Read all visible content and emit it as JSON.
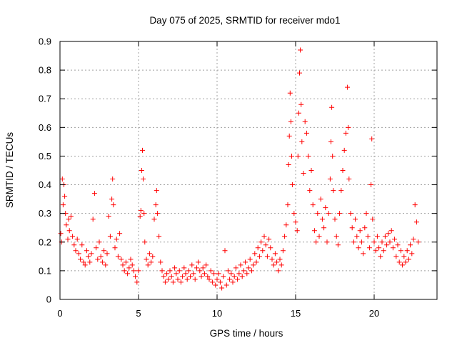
{
  "chart_data": {
    "type": "scatter",
    "title": "Day 075 of 2025, SRMTID for receiver mdo1",
    "xlabel": "GPS time / hours",
    "ylabel": "SRMTID / TECUs",
    "xlim": [
      0,
      24
    ],
    "ylim": [
      0,
      0.9
    ],
    "xticks": [
      0,
      5,
      10,
      15,
      20
    ],
    "xtick_labels": [
      "0",
      "5",
      "10",
      "15",
      "20"
    ],
    "yticks": [
      0,
      0.1,
      0.2,
      0.3,
      0.4,
      0.5,
      0.6,
      0.7,
      0.8,
      0.9
    ],
    "ytick_labels": [
      "0",
      "0.1",
      "0.2",
      "0.3",
      "0.4",
      "0.5",
      "0.6",
      "0.7",
      "0.8",
      "0.9"
    ],
    "grid": true,
    "marker": "+",
    "marker_color": "#ff0000",
    "series": [
      {
        "name": "SRMTID",
        "points": [
          [
            0.05,
            0.23
          ],
          [
            0.1,
            0.2
          ],
          [
            0.15,
            0.42
          ],
          [
            0.2,
            0.33
          ],
          [
            0.25,
            0.4
          ],
          [
            0.3,
            0.36
          ],
          [
            0.35,
            0.3
          ],
          [
            0.4,
            0.26
          ],
          [
            0.5,
            0.21
          ],
          [
            0.55,
            0.28
          ],
          [
            0.6,
            0.24
          ],
          [
            0.7,
            0.29
          ],
          [
            0.8,
            0.22
          ],
          [
            0.9,
            0.19
          ],
          [
            1.0,
            0.17
          ],
          [
            1.1,
            0.21
          ],
          [
            1.2,
            0.16
          ],
          [
            1.3,
            0.14
          ],
          [
            1.4,
            0.19
          ],
          [
            1.5,
            0.13
          ],
          [
            1.6,
            0.12
          ],
          [
            1.7,
            0.17
          ],
          [
            1.8,
            0.15
          ],
          [
            1.9,
            0.13
          ],
          [
            2.0,
            0.16
          ],
          [
            2.1,
            0.28
          ],
          [
            2.2,
            0.37
          ],
          [
            2.3,
            0.18
          ],
          [
            2.4,
            0.14
          ],
          [
            2.5,
            0.2
          ],
          [
            2.6,
            0.15
          ],
          [
            2.7,
            0.13
          ],
          [
            2.8,
            0.17
          ],
          [
            2.9,
            0.12
          ],
          [
            3.0,
            0.16
          ],
          [
            3.1,
            0.29
          ],
          [
            3.2,
            0.22
          ],
          [
            3.3,
            0.35
          ],
          [
            3.35,
            0.42
          ],
          [
            3.4,
            0.33
          ],
          [
            3.5,
            0.18
          ],
          [
            3.6,
            0.21
          ],
          [
            3.7,
            0.15
          ],
          [
            3.8,
            0.23
          ],
          [
            3.9,
            0.14
          ],
          [
            4.0,
            0.12
          ],
          [
            4.1,
            0.1
          ],
          [
            4.2,
            0.13
          ],
          [
            4.3,
            0.09
          ],
          [
            4.4,
            0.11
          ],
          [
            4.5,
            0.14
          ],
          [
            4.6,
            0.12
          ],
          [
            4.7,
            0.1
          ],
          [
            4.8,
            0.08
          ],
          [
            4.9,
            0.06
          ],
          [
            5.0,
            0.1
          ],
          [
            5.1,
            0.29
          ],
          [
            5.15,
            0.31
          ],
          [
            5.2,
            0.45
          ],
          [
            5.25,
            0.52
          ],
          [
            5.3,
            0.42
          ],
          [
            5.35,
            0.3
          ],
          [
            5.4,
            0.2
          ],
          [
            5.5,
            0.14
          ],
          [
            5.6,
            0.12
          ],
          [
            5.7,
            0.16
          ],
          [
            5.8,
            0.13
          ],
          [
            5.9,
            0.15
          ],
          [
            6.0,
            0.28
          ],
          [
            6.1,
            0.33
          ],
          [
            6.15,
            0.38
          ],
          [
            6.2,
            0.3
          ],
          [
            6.3,
            0.22
          ],
          [
            6.4,
            0.13
          ],
          [
            6.5,
            0.1
          ],
          [
            6.6,
            0.08
          ],
          [
            6.7,
            0.06
          ],
          [
            6.8,
            0.09
          ],
          [
            6.9,
            0.07
          ],
          [
            7.0,
            0.1
          ],
          [
            7.1,
            0.08
          ],
          [
            7.2,
            0.06
          ],
          [
            7.3,
            0.11
          ],
          [
            7.4,
            0.09
          ],
          [
            7.5,
            0.07
          ],
          [
            7.6,
            0.1
          ],
          [
            7.7,
            0.06
          ],
          [
            7.8,
            0.08
          ],
          [
            7.9,
            0.11
          ],
          [
            8.0,
            0.09
          ],
          [
            8.1,
            0.07
          ],
          [
            8.2,
            0.1
          ],
          [
            8.3,
            0.08
          ],
          [
            8.4,
            0.12
          ],
          [
            8.5,
            0.09
          ],
          [
            8.6,
            0.07
          ],
          [
            8.7,
            0.11
          ],
          [
            8.8,
            0.13
          ],
          [
            8.9,
            0.1
          ],
          [
            9.0,
            0.08
          ],
          [
            9.1,
            0.11
          ],
          [
            9.2,
            0.09
          ],
          [
            9.3,
            0.12
          ],
          [
            9.4,
            0.08
          ],
          [
            9.5,
            0.07
          ],
          [
            9.6,
            0.1
          ],
          [
            9.7,
            0.06
          ],
          [
            9.8,
            0.09
          ],
          [
            9.9,
            0.05
          ],
          [
            10.0,
            0.07
          ],
          [
            10.1,
            0.09
          ],
          [
            10.2,
            0.06
          ],
          [
            10.3,
            0.04
          ],
          [
            10.4,
            0.08
          ],
          [
            10.5,
            0.17
          ],
          [
            10.6,
            0.05
          ],
          [
            10.7,
            0.1
          ],
          [
            10.8,
            0.07
          ],
          [
            10.9,
            0.09
          ],
          [
            11.0,
            0.06
          ],
          [
            11.1,
            0.08
          ],
          [
            11.2,
            0.11
          ],
          [
            11.3,
            0.07
          ],
          [
            11.4,
            0.09
          ],
          [
            11.5,
            0.12
          ],
          [
            11.6,
            0.08
          ],
          [
            11.7,
            0.1
          ],
          [
            11.8,
            0.13
          ],
          [
            11.9,
            0.09
          ],
          [
            12.0,
            0.11
          ],
          [
            12.1,
            0.14
          ],
          [
            12.2,
            0.1
          ],
          [
            12.3,
            0.12
          ],
          [
            12.4,
            0.16
          ],
          [
            12.5,
            0.13
          ],
          [
            12.6,
            0.18
          ],
          [
            12.7,
            0.15
          ],
          [
            12.8,
            0.2
          ],
          [
            12.9,
            0.17
          ],
          [
            13.0,
            0.22
          ],
          [
            13.1,
            0.19
          ],
          [
            13.2,
            0.15
          ],
          [
            13.3,
            0.21
          ],
          [
            13.4,
            0.18
          ],
          [
            13.5,
            0.14
          ],
          [
            13.6,
            0.12
          ],
          [
            13.7,
            0.16
          ],
          [
            13.8,
            0.13
          ],
          [
            13.9,
            0.1
          ],
          [
            14.0,
            0.14
          ],
          [
            14.1,
            0.12
          ],
          [
            14.2,
            0.17
          ],
          [
            14.3,
            0.22
          ],
          [
            14.4,
            0.26
          ],
          [
            14.5,
            0.33
          ],
          [
            14.55,
            0.47
          ],
          [
            14.6,
            0.57
          ],
          [
            14.65,
            0.72
          ],
          [
            14.7,
            0.62
          ],
          [
            14.75,
            0.5
          ],
          [
            14.8,
            0.4
          ],
          [
            14.9,
            0.3
          ],
          [
            15.0,
            0.27
          ],
          [
            15.1,
            0.24
          ],
          [
            15.15,
            0.5
          ],
          [
            15.2,
            0.65
          ],
          [
            15.25,
            0.79
          ],
          [
            15.3,
            0.87
          ],
          [
            15.35,
            0.68
          ],
          [
            15.4,
            0.55
          ],
          [
            15.5,
            0.44
          ],
          [
            15.6,
            0.62
          ],
          [
            15.7,
            0.58
          ],
          [
            15.8,
            0.5
          ],
          [
            15.9,
            0.38
          ],
          [
            16.0,
            0.45
          ],
          [
            16.1,
            0.33
          ],
          [
            16.2,
            0.24
          ],
          [
            16.3,
            0.2
          ],
          [
            16.4,
            0.3
          ],
          [
            16.5,
            0.22
          ],
          [
            16.6,
            0.35
          ],
          [
            16.7,
            0.28
          ],
          [
            16.8,
            0.25
          ],
          [
            16.9,
            0.32
          ],
          [
            17.0,
            0.2
          ],
          [
            17.1,
            0.3
          ],
          [
            17.2,
            0.42
          ],
          [
            17.25,
            0.55
          ],
          [
            17.3,
            0.67
          ],
          [
            17.35,
            0.5
          ],
          [
            17.4,
            0.38
          ],
          [
            17.5,
            0.28
          ],
          [
            17.6,
            0.22
          ],
          [
            17.7,
            0.19
          ],
          [
            17.8,
            0.3
          ],
          [
            17.9,
            0.38
          ],
          [
            18.0,
            0.45
          ],
          [
            18.1,
            0.52
          ],
          [
            18.2,
            0.58
          ],
          [
            18.3,
            0.74
          ],
          [
            18.35,
            0.6
          ],
          [
            18.4,
            0.42
          ],
          [
            18.5,
            0.3
          ],
          [
            18.6,
            0.25
          ],
          [
            18.7,
            0.2
          ],
          [
            18.8,
            0.28
          ],
          [
            18.9,
            0.22
          ],
          [
            19.0,
            0.18
          ],
          [
            19.1,
            0.24
          ],
          [
            19.2,
            0.2
          ],
          [
            19.3,
            0.16
          ],
          [
            19.4,
            0.25
          ],
          [
            19.5,
            0.3
          ],
          [
            19.6,
            0.22
          ],
          [
            19.7,
            0.18
          ],
          [
            19.8,
            0.4
          ],
          [
            19.85,
            0.56
          ],
          [
            19.9,
            0.28
          ],
          [
            20.0,
            0.2
          ],
          [
            20.1,
            0.17
          ],
          [
            20.2,
            0.22
          ],
          [
            20.3,
            0.18
          ],
          [
            20.4,
            0.15
          ],
          [
            20.5,
            0.2
          ],
          [
            20.6,
            0.17
          ],
          [
            20.7,
            0.22
          ],
          [
            20.8,
            0.19
          ],
          [
            20.9,
            0.23
          ],
          [
            21.0,
            0.2
          ],
          [
            21.1,
            0.24
          ],
          [
            21.2,
            0.18
          ],
          [
            21.3,
            0.21
          ],
          [
            21.4,
            0.15
          ],
          [
            21.5,
            0.19
          ],
          [
            21.6,
            0.13
          ],
          [
            21.7,
            0.17
          ],
          [
            21.8,
            0.12
          ],
          [
            21.9,
            0.15
          ],
          [
            22.0,
            0.13
          ],
          [
            22.1,
            0.17
          ],
          [
            22.2,
            0.14
          ],
          [
            22.3,
            0.19
          ],
          [
            22.4,
            0.16
          ],
          [
            22.5,
            0.21
          ],
          [
            22.6,
            0.33
          ],
          [
            22.7,
            0.27
          ],
          [
            22.8,
            0.2
          ]
        ]
      }
    ]
  }
}
